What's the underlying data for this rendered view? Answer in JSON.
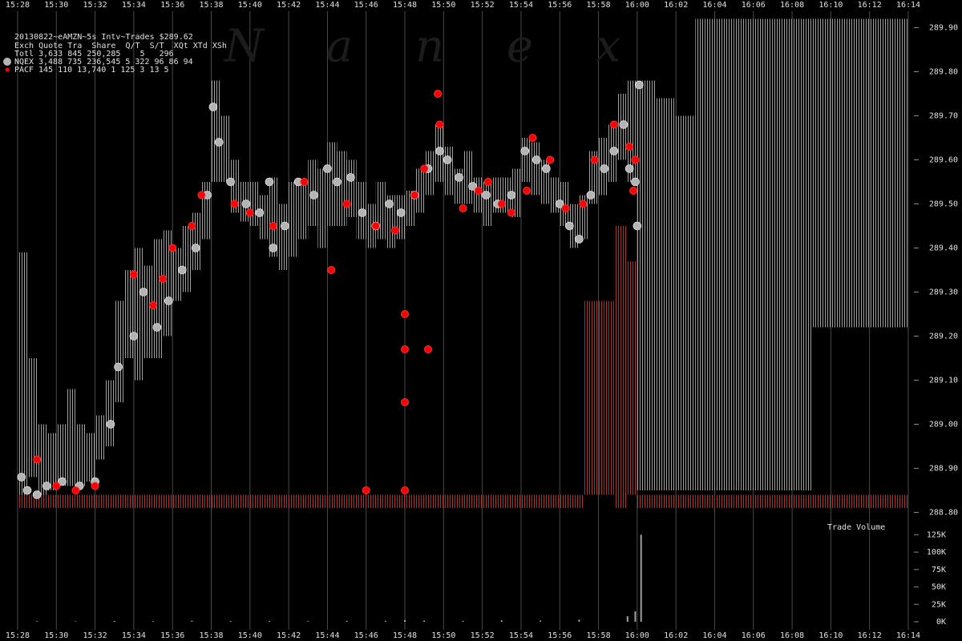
{
  "chart_data": [
    {
      "type": "scatter",
      "title": "20130822~eAMZN~5s Intv~Trades $289.62",
      "columns": "Exch Quote Tra  Share  Q/T  S/T  XQt XTd XSh",
      "total": "Totl 3,633 845 250,285    5   296",
      "watermark": "N  a  n  e  x",
      "xlim": [
        927.09,
        974.29
      ],
      "ylim": [
        288.79,
        289.93
      ],
      "xticks": [
        {
          "value": 928,
          "label": "15:28"
        },
        {
          "value": 930,
          "label": "15:30"
        },
        {
          "value": 932,
          "label": "15:32"
        },
        {
          "value": 934,
          "label": "15:34"
        },
        {
          "value": 936,
          "label": "15:36"
        },
        {
          "value": 938,
          "label": "15:38"
        },
        {
          "value": 940,
          "label": "15:40"
        },
        {
          "value": 942,
          "label": "15:42"
        },
        {
          "value": 944,
          "label": "15:44"
        },
        {
          "value": 946,
          "label": "15:46"
        },
        {
          "value": 948,
          "label": "15:48"
        },
        {
          "value": 950,
          "label": "15:50"
        },
        {
          "value": 952,
          "label": "15:52"
        },
        {
          "value": 954,
          "label": "15:54"
        },
        {
          "value": 956,
          "label": "15:56"
        },
        {
          "value": 958,
          "label": "15:58"
        },
        {
          "value": 960,
          "label": "16:00"
        },
        {
          "value": 962,
          "label": "16:02"
        },
        {
          "value": 964,
          "label": "16:04"
        },
        {
          "value": 966,
          "label": "16:06"
        },
        {
          "value": 968,
          "label": "16:08"
        },
        {
          "value": 970,
          "label": "16:10"
        },
        {
          "value": 972,
          "label": "16:12"
        },
        {
          "value": 974,
          "label": "16:14"
        }
      ],
      "yticks": [
        {
          "value": 288.8,
          "label": "288.80"
        },
        {
          "value": 288.9,
          "label": "288.90"
        },
        {
          "value": 289.0,
          "label": "289.00"
        },
        {
          "value": 289.1,
          "label": "289.10"
        },
        {
          "value": 289.2,
          "label": "289.20"
        },
        {
          "value": 289.3,
          "label": "289.30"
        },
        {
          "value": 289.4,
          "label": "289.40"
        },
        {
          "value": 289.5,
          "label": "289.50"
        },
        {
          "value": 289.6,
          "label": "289.60"
        },
        {
          "value": 289.7,
          "label": "289.70"
        },
        {
          "value": 289.8,
          "label": "289.80"
        },
        {
          "value": 289.9,
          "label": "289.90"
        }
      ],
      "grid": true,
      "ranges": [
        {
          "color": "#a0a0a0",
          "x": [
            928,
            928.5,
            929,
            929.5,
            930,
            930.5,
            931,
            931.5,
            932,
            932.5,
            933,
            933.5,
            934,
            934.5,
            935,
            935.5,
            936,
            936.5,
            937,
            937.5,
            938,
            938.5,
            939,
            939.5,
            940,
            940.5,
            941,
            941.5,
            942,
            942.5,
            943,
            943.5,
            944,
            944.5,
            945,
            945.5,
            946,
            946.5,
            947,
            947.5,
            948,
            948.5,
            949,
            949.5,
            950,
            950.5,
            951,
            951.5,
            952,
            952.5,
            953,
            953.5,
            954,
            954.5,
            955,
            955.5,
            956,
            956.5,
            957,
            957.5,
            958,
            958.5,
            959,
            959.5,
            960,
            961,
            962,
            963,
            964,
            965,
            966,
            967,
            968,
            969,
            970,
            971,
            972,
            973
          ],
          "low": [
            288.84,
            288.88,
            288.84,
            288.85,
            288.86,
            288.86,
            288.86,
            288.87,
            288.92,
            288.95,
            289.05,
            289.15,
            289.1,
            289.15,
            289.15,
            289.2,
            289.28,
            289.3,
            289.35,
            289.42,
            289.55,
            289.55,
            289.48,
            289.46,
            289.45,
            289.42,
            289.38,
            289.35,
            289.38,
            289.42,
            289.45,
            289.4,
            289.45,
            289.45,
            289.47,
            289.42,
            289.4,
            289.42,
            289.4,
            289.42,
            289.45,
            289.48,
            289.52,
            289.55,
            289.52,
            289.5,
            289.5,
            289.48,
            289.45,
            289.48,
            289.48,
            289.47,
            289.55,
            289.52,
            289.5,
            289.48,
            289.45,
            289.4,
            289.42,
            289.5,
            289.52,
            289.55,
            289.6,
            289.55,
            288.85,
            288.85,
            288.85,
            288.85,
            288.85,
            288.85,
            288.85,
            288.85,
            288.85,
            289.22,
            289.22,
            289.22,
            289.22,
            289.22
          ],
          "high": [
            289.39,
            289.15,
            289.0,
            288.98,
            289.0,
            289.08,
            289.0,
            288.98,
            289.02,
            289.1,
            289.28,
            289.35,
            289.4,
            289.36,
            289.42,
            289.44,
            289.4,
            289.45,
            289.48,
            289.55,
            289.78,
            289.7,
            289.6,
            289.55,
            289.55,
            289.52,
            289.56,
            289.5,
            289.55,
            289.55,
            289.6,
            289.58,
            289.64,
            289.62,
            289.6,
            289.55,
            289.5,
            289.55,
            289.52,
            289.52,
            289.53,
            289.58,
            289.62,
            289.68,
            289.63,
            289.58,
            289.62,
            289.56,
            289.55,
            289.56,
            289.56,
            289.58,
            289.65,
            289.64,
            289.6,
            289.56,
            289.55,
            289.5,
            289.52,
            289.62,
            289.65,
            289.68,
            289.75,
            289.78,
            289.78,
            289.74,
            289.7,
            289.92,
            289.92,
            289.92,
            289.92,
            289.92,
            289.92,
            289.92,
            289.92,
            289.92,
            289.92,
            289.92
          ]
        },
        {
          "color": "#b03030",
          "x": [
            928,
            929,
            930,
            931,
            932,
            933,
            934,
            935,
            936,
            937,
            938,
            939,
            940,
            941,
            942,
            943,
            944,
            945,
            946,
            947,
            948,
            949,
            950,
            951,
            952,
            953,
            954,
            955,
            956,
            957.2,
            958,
            958.8,
            959.5,
            960,
            961,
            962,
            963,
            964,
            965,
            966,
            967,
            968,
            969,
            970,
            971,
            972,
            973
          ],
          "low": [
            288.81,
            288.81,
            288.81,
            288.81,
            288.81,
            288.81,
            288.81,
            288.81,
            288.81,
            288.81,
            288.81,
            288.81,
            288.81,
            288.81,
            288.81,
            288.81,
            288.81,
            288.81,
            288.81,
            288.81,
            288.81,
            288.81,
            288.81,
            288.81,
            288.81,
            288.81,
            288.81,
            288.81,
            288.81,
            288.84,
            288.84,
            288.81,
            288.84,
            288.81,
            288.81,
            288.81,
            288.81,
            288.81,
            288.81,
            288.81,
            288.81,
            288.81,
            288.81,
            288.81,
            288.81,
            288.81,
            288.81
          ],
          "high": [
            288.84,
            288.84,
            288.84,
            288.84,
            288.84,
            288.84,
            288.84,
            288.84,
            288.84,
            288.84,
            288.84,
            288.84,
            288.84,
            288.84,
            288.84,
            288.84,
            288.84,
            288.84,
            288.84,
            288.84,
            288.84,
            288.84,
            288.84,
            288.84,
            288.84,
            288.84,
            288.84,
            288.84,
            288.84,
            289.28,
            289.28,
            289.45,
            289.37,
            288.84,
            288.84,
            288.84,
            288.84,
            288.84,
            288.84,
            288.84,
            288.84,
            288.84,
            288.84,
            288.84,
            288.84,
            288.84,
            288.84
          ]
        }
      ],
      "series": [
        {
          "name": "NQEX",
          "stats": "3,488 735 236,545    5   322  96  86  94",
          "color": "#b4b4b4",
          "x": [
            928.2,
            928.5,
            929,
            929.5,
            930.3,
            931.2,
            932,
            932.8,
            933.2,
            934,
            934.5,
            935.2,
            935.8,
            936.5,
            937.2,
            937.8,
            938.1,
            938.4,
            939,
            939.8,
            940.5,
            941,
            941.2,
            941.8,
            942.5,
            943.3,
            944,
            944.5,
            945.2,
            945.8,
            946.5,
            947.2,
            947.8,
            948.5,
            949.2,
            949.8,
            950.2,
            950.8,
            951.5,
            952.2,
            952.8,
            953.5,
            954.2,
            954.8,
            955.3,
            956,
            956.5,
            957,
            957.6,
            958.3,
            958.8,
            959.3,
            959.6,
            959.9,
            960,
            960.1
          ],
          "values": [
            288.88,
            288.85,
            288.84,
            288.86,
            288.87,
            288.86,
            288.87,
            289.0,
            289.13,
            289.2,
            289.3,
            289.22,
            289.28,
            289.35,
            289.4,
            289.52,
            289.72,
            289.64,
            289.55,
            289.5,
            289.48,
            289.55,
            289.4,
            289.45,
            289.55,
            289.52,
            289.58,
            289.55,
            289.56,
            289.48,
            289.45,
            289.5,
            289.48,
            289.52,
            289.58,
            289.62,
            289.6,
            289.56,
            289.54,
            289.52,
            289.5,
            289.52,
            289.62,
            289.6,
            289.58,
            289.5,
            289.45,
            289.42,
            289.52,
            289.58,
            289.62,
            289.68,
            289.58,
            289.55,
            289.45,
            289.77
          ]
        },
        {
          "name": "PACF",
          "stats": "  145 110  13,740    1   125   3  13   5",
          "color": "#ff0000",
          "x": [
            929,
            930,
            931,
            932,
            934,
            935,
            935.5,
            936,
            937,
            937.5,
            939.2,
            940,
            941.2,
            942.8,
            944.2,
            945,
            946,
            946.5,
            947.5,
            948,
            948,
            948,
            948,
            948.5,
            949,
            949.2,
            949.7,
            949.8,
            951,
            951.8,
            952.3,
            953,
            953.5,
            954.3,
            954.6,
            955.5,
            956.3,
            957.2,
            957.8,
            958.8,
            959.6,
            959.8,
            959.9
          ],
          "values": [
            288.92,
            288.86,
            288.85,
            288.86,
            289.34,
            289.27,
            289.33,
            289.4,
            289.45,
            289.52,
            289.5,
            289.48,
            289.45,
            289.55,
            289.35,
            289.5,
            288.85,
            289.45,
            289.44,
            289.25,
            289.17,
            289.05,
            288.85,
            289.52,
            289.58,
            289.17,
            289.75,
            289.68,
            289.49,
            289.53,
            289.55,
            289.5,
            289.48,
            289.53,
            289.65,
            289.6,
            289.49,
            289.5,
            289.6,
            289.68,
            289.63,
            289.53,
            289.6
          ]
        }
      ]
    },
    {
      "type": "bar",
      "title": "Trade Volume",
      "color": "#a0a0a0",
      "xlim": [
        927.09,
        974.29
      ],
      "ylim": [
        0,
        130000
      ],
      "xticks": [
        {
          "value": 928,
          "label": "15:28"
        },
        {
          "value": 930,
          "label": "15:30"
        },
        {
          "value": 932,
          "label": "15:32"
        },
        {
          "value": 934,
          "label": "15:34"
        },
        {
          "value": 936,
          "label": "15:36"
        },
        {
          "value": 938,
          "label": "15:38"
        },
        {
          "value": 940,
          "label": "15:40"
        },
        {
          "value": 942,
          "label": "15:42"
        },
        {
          "value": 944,
          "label": "15:44"
        },
        {
          "value": 946,
          "label": "15:46"
        },
        {
          "value": 948,
          "label": "15:48"
        },
        {
          "value": 950,
          "label": "15:50"
        },
        {
          "value": 952,
          "label": "15:52"
        },
        {
          "value": 954,
          "label": "15:54"
        },
        {
          "value": 956,
          "label": "15:56"
        },
        {
          "value": 958,
          "label": "15:58"
        },
        {
          "value": 960,
          "label": "16:00"
        },
        {
          "value": 962,
          "label": "16:02"
        },
        {
          "value": 964,
          "label": "16:04"
        },
        {
          "value": 966,
          "label": "16:06"
        },
        {
          "value": 968,
          "label": "16:08"
        },
        {
          "value": 970,
          "label": "16:10"
        },
        {
          "value": 972,
          "label": "16:12"
        },
        {
          "value": 974,
          "label": "16:14"
        }
      ],
      "yticks": [
        {
          "value": 0,
          "label": "0K"
        },
        {
          "value": 25000,
          "label": "25K"
        },
        {
          "value": 50000,
          "label": "50K"
        },
        {
          "value": 75000,
          "label": "75K"
        },
        {
          "value": 100000,
          "label": "100K"
        },
        {
          "value": 125000,
          "label": "125K"
        }
      ],
      "x": [
        929,
        931,
        933,
        935,
        937,
        939,
        941,
        943,
        945,
        947,
        948,
        949,
        951,
        953,
        955,
        957,
        959.5,
        959.9,
        960.2
      ],
      "values": [
        800,
        600,
        1200,
        900,
        1500,
        1000,
        1100,
        900,
        1300,
        1400,
        2500,
        1800,
        1200,
        2000,
        1700,
        3000,
        8000,
        15000,
        125000
      ]
    }
  ]
}
